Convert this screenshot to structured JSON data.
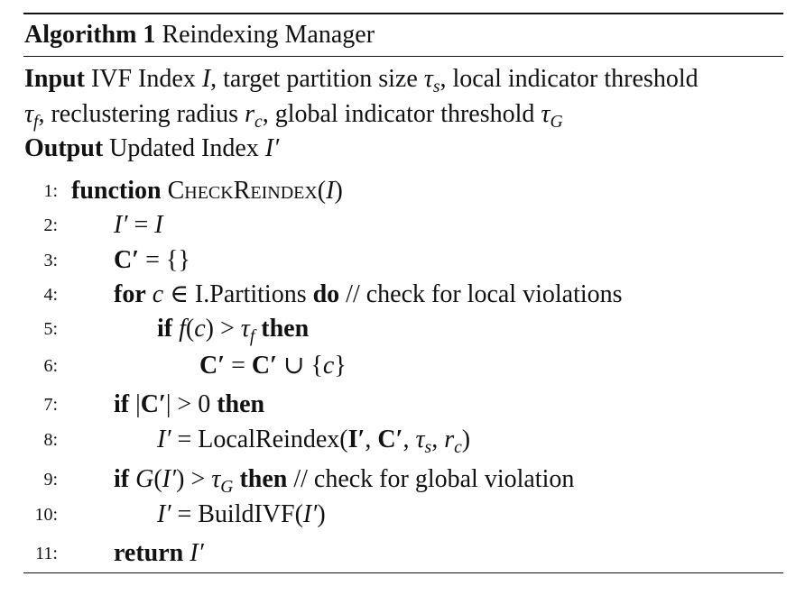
{
  "algorithm": {
    "label": "Algorithm 1",
    "name": "Reindexing Manager"
  },
  "input": {
    "keyword": "Input",
    "line1_a": "IVF Index ",
    "I": "I",
    "line1_b": ", target partition size ",
    "tau": "τ",
    "s": "s",
    "line1_c": ", local indicator threshold",
    "f": "f",
    "line2_b": ", reclustering radius ",
    "r": "r",
    "c": "c",
    "line2_c": ", global indicator threshold ",
    "G": "G"
  },
  "output": {
    "keyword": "Output",
    "text": "Updated Index ",
    "Iprime": "I′"
  },
  "lines": [
    {
      "num": "1:",
      "kw": "function",
      "fn": "CheckReindex",
      "a": "(",
      "I": "I",
      "b": ")"
    },
    {
      "num": "2:",
      "a": "I′",
      "b": " = ",
      "c": "I"
    },
    {
      "num": "3:",
      "a": "C′",
      "b": " = {}"
    },
    {
      "num": "4:",
      "kw": "for",
      "var": "c",
      "a": " ∈ I.Partitions ",
      "kw2": "do",
      "comment": " // check for local violations"
    },
    {
      "num": "5:",
      "kw": "if",
      "f": "f",
      "a": "(",
      "c": "c",
      "b": ") > ",
      "tau": "τ",
      "sub": "f",
      "kw2": "then"
    },
    {
      "num": "6:",
      "C1": "C′",
      "a": " = ",
      "C2": "C′",
      "b": " ∪ {",
      "c": "c",
      "d": "}"
    },
    {
      "num": "7:",
      "kw": "if",
      "a": " |",
      "C": "C′",
      "b": "| > 0 ",
      "kw2": "then"
    },
    {
      "num": "8:",
      "I": "I′",
      "a": " = LocalReindex(",
      "I2": "I′",
      "b": ", ",
      "C": "C′",
      "c": ", ",
      "tau": "τ",
      "s": "s",
      "d": ", ",
      "r": "r",
      "rc": "c",
      "e": ")"
    },
    {
      "num": "9:",
      "kw": "if",
      "G": "G",
      "a": "(",
      "I": "I′",
      "b": ") > ",
      "tau": "τ",
      "sub": "G",
      "kw2": "then",
      "comment": " // check for global violation"
    },
    {
      "num": "10:",
      "I": "I′",
      "a": " = BuildIVF(",
      "I2": "I′",
      "b": ")"
    },
    {
      "num": "11:",
      "kw": "return",
      "I": "I′"
    }
  ]
}
